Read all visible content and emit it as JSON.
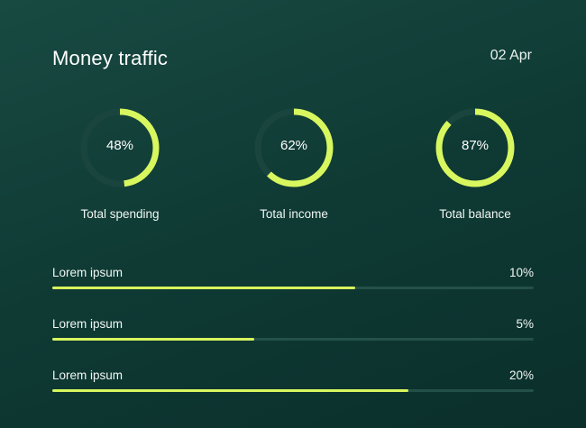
{
  "header": {
    "title": "Money traffic",
    "date": "02 Apr"
  },
  "colors": {
    "accent": "#d8f75e",
    "track": "#24504a",
    "background": "#113d37"
  },
  "gauges": [
    {
      "percent_label": "48%",
      "value": 48,
      "label": "Total spending"
    },
    {
      "percent_label": "62%",
      "value": 62,
      "label": "Total income"
    },
    {
      "percent_label": "87%",
      "value": 87,
      "label": "Total balance"
    }
  ],
  "bars": [
    {
      "label": "Lorem ipsum",
      "value_label": "10%",
      "fill_fraction": 0.63
    },
    {
      "label": "Lorem ipsum",
      "value_label": "5%",
      "fill_fraction": 0.42
    },
    {
      "label": "Lorem ipsum",
      "value_label": "20%",
      "fill_fraction": 0.74
    }
  ]
}
